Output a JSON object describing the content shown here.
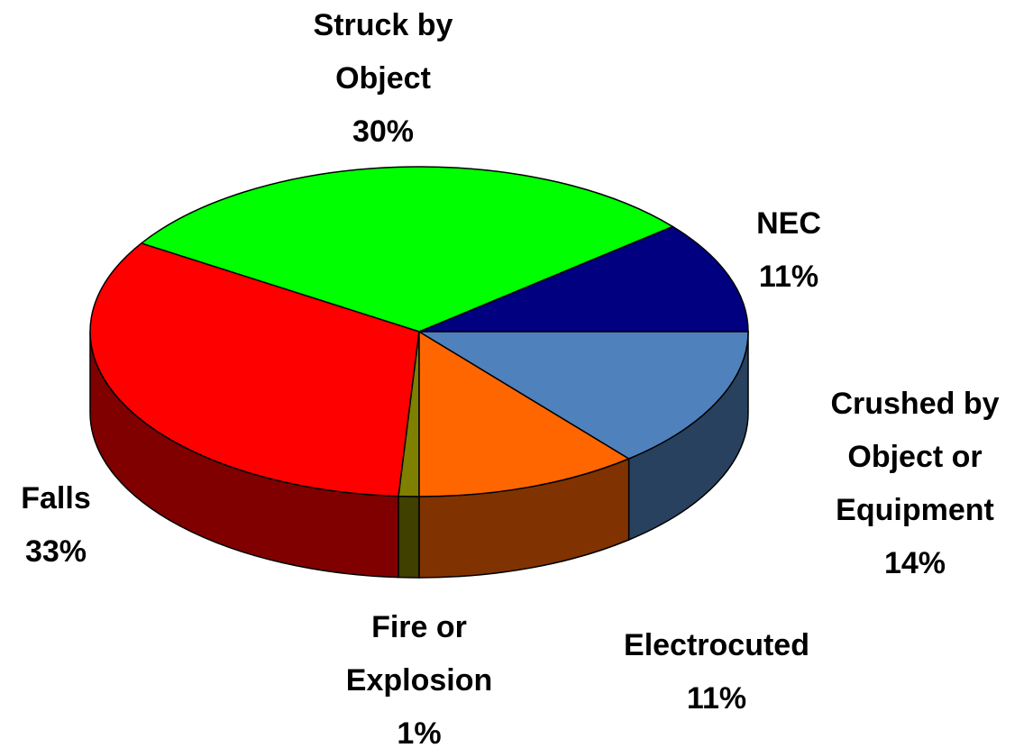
{
  "chart_data": {
    "type": "pie",
    "categories": [
      "NEC",
      "Struck by Object",
      "Falls",
      "Fire or Explosion",
      "Electrocuted",
      "Crushed by Object or Equipment"
    ],
    "values": [
      11,
      30,
      33,
      1,
      11,
      14
    ],
    "value_labels": [
      "11%",
      "30%",
      "33%",
      "1%",
      "11%",
      "14%"
    ],
    "colors": [
      "#000080",
      "#00ff00",
      "#ff0000",
      "#808000",
      "#ff6600",
      "#4f81bd"
    ],
    "three_d": true
  }
}
